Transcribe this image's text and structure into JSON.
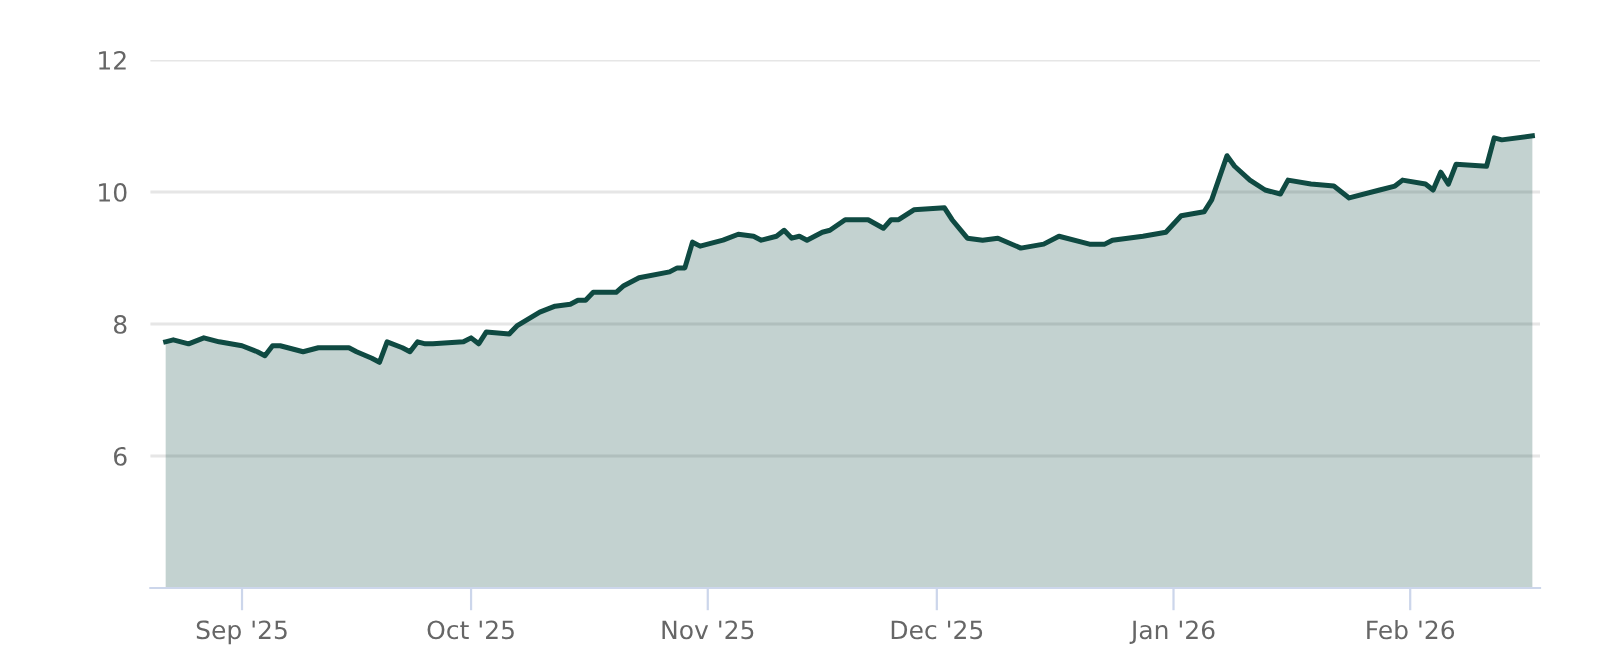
{
  "chart_data": {
    "type": "area",
    "x": [
      "2025-08-22",
      "2025-08-23",
      "2025-08-25",
      "2025-08-27",
      "2025-08-29",
      "2025-09-01",
      "2025-09-03",
      "2025-09-04",
      "2025-09-05",
      "2025-09-06",
      "2025-09-09",
      "2025-09-11",
      "2025-09-15",
      "2025-09-16",
      "2025-09-18",
      "2025-09-19",
      "2025-09-20",
      "2025-09-22",
      "2025-09-23",
      "2025-09-24",
      "2025-09-25",
      "2025-09-26",
      "2025-09-30",
      "2025-10-01",
      "2025-10-02",
      "2025-10-03",
      "2025-10-06",
      "2025-10-07",
      "2025-10-10",
      "2025-10-12",
      "2025-10-14",
      "2025-10-15",
      "2025-10-16",
      "2025-10-17",
      "2025-10-20",
      "2025-10-21",
      "2025-10-23",
      "2025-10-27",
      "2025-10-28",
      "2025-10-29",
      "2025-10-30",
      "2025-10-31",
      "2025-11-03",
      "2025-11-05",
      "2025-11-07",
      "2025-11-08",
      "2025-11-10",
      "2025-11-11",
      "2025-11-12",
      "2025-11-13",
      "2025-11-14",
      "2025-11-16",
      "2025-11-17",
      "2025-11-19",
      "2025-11-20",
      "2025-11-22",
      "2025-11-24",
      "2025-11-25",
      "2025-11-26",
      "2025-11-28",
      "2025-12-02",
      "2025-12-03",
      "2025-12-05",
      "2025-12-07",
      "2025-12-09",
      "2025-12-12",
      "2025-12-15",
      "2025-12-17",
      "2025-12-21",
      "2025-12-23",
      "2025-12-24",
      "2025-12-28",
      "2025-12-31",
      "2026-01-02",
      "2026-01-05",
      "2026-01-06",
      "2026-01-08",
      "2026-01-09",
      "2026-01-11",
      "2026-01-13",
      "2026-01-15",
      "2026-01-16",
      "2026-01-19",
      "2026-01-22",
      "2026-01-23",
      "2026-01-24",
      "2026-01-28",
      "2026-01-30",
      "2026-01-31",
      "2026-02-03",
      "2026-02-04",
      "2026-02-05",
      "2026-02-06",
      "2026-02-07",
      "2026-02-11",
      "2026-02-12",
      "2026-02-13",
      "2026-02-17"
    ],
    "series": [
      {
        "color": "#0f4a42",
        "values": [
          7.73,
          7.76,
          7.7,
          7.79,
          7.73,
          7.67,
          7.58,
          7.52,
          7.67,
          7.67,
          7.58,
          7.64,
          7.64,
          7.58,
          7.48,
          7.42,
          7.73,
          7.64,
          7.58,
          7.73,
          7.7,
          7.7,
          7.73,
          7.79,
          7.7,
          7.88,
          7.85,
          7.97,
          8.18,
          8.27,
          8.3,
          8.36,
          8.36,
          8.48,
          8.48,
          8.58,
          8.7,
          8.79,
          8.85,
          8.85,
          9.24,
          9.18,
          9.27,
          9.36,
          9.33,
          9.27,
          9.33,
          9.42,
          9.3,
          9.33,
          9.27,
          9.39,
          9.42,
          9.58,
          9.58,
          9.58,
          9.45,
          9.58,
          9.58,
          9.73,
          9.76,
          9.58,
          9.3,
          9.27,
          9.3,
          9.15,
          9.21,
          9.33,
          9.21,
          9.21,
          9.27,
          9.33,
          9.39,
          9.64,
          9.7,
          9.88,
          10.55,
          10.39,
          10.18,
          10.03,
          9.97,
          10.18,
          10.12,
          10.09,
          10.0,
          9.91,
          10.03,
          10.09,
          10.18,
          10.12,
          10.03,
          10.3,
          10.12,
          10.42,
          10.39,
          10.82,
          10.79,
          10.85
        ]
      }
    ],
    "xlim": [
      "2025-08-20",
      "2026-02-18"
    ],
    "xticks": [
      {
        "value": "2025-09-01",
        "label": "Sep '25"
      },
      {
        "value": "2025-10-01",
        "label": "Oct '25"
      },
      {
        "value": "2025-11-01",
        "label": "Nov '25"
      },
      {
        "value": "2025-12-01",
        "label": "Dec '25"
      },
      {
        "value": "2026-01-01",
        "label": "Jan '26"
      },
      {
        "value": "2026-02-01",
        "label": "Feb '26"
      }
    ],
    "ylim": [
      4,
      12
    ],
    "yticks": [
      6,
      8,
      10,
      12
    ],
    "grid": "y",
    "marker": "none",
    "line_style": "solid"
  }
}
